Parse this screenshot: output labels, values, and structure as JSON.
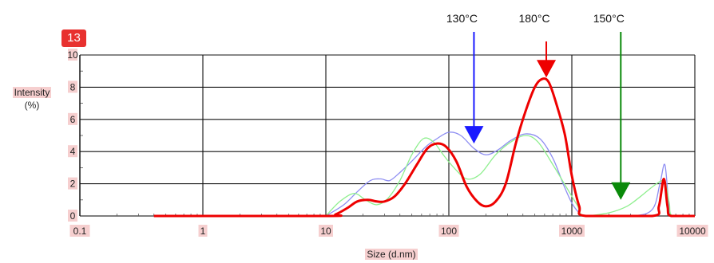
{
  "badge": "13",
  "chart_data": {
    "type": "line",
    "xlabel": "Size (d.nm)",
    "ylabel_line1": "Intensity",
    "ylabel_line2": "(%)",
    "xscale": "log",
    "xlim": [
      0.1,
      10000
    ],
    "ylim": [
      0,
      10
    ],
    "xticks": [
      {
        "value": 0.1,
        "label": "0.1"
      },
      {
        "value": 1,
        "label": "1"
      },
      {
        "value": 10,
        "label": "10"
      },
      {
        "value": 100,
        "label": "100"
      },
      {
        "value": 1000,
        "label": "1000"
      },
      {
        "value": 10000,
        "label": "10000"
      }
    ],
    "yticks": [
      0,
      2,
      4,
      6,
      8,
      10
    ],
    "grid": true,
    "series": [
      {
        "name": "130°C",
        "color": "#8e8ef2",
        "points": [
          [
            10,
            0
          ],
          [
            14,
            0.7
          ],
          [
            18,
            1.5
          ],
          [
            23,
            2.2
          ],
          [
            28,
            2.3
          ],
          [
            33,
            2.2
          ],
          [
            40,
            2.7
          ],
          [
            50,
            3.4
          ],
          [
            65,
            4.3
          ],
          [
            80,
            4.8
          ],
          [
            100,
            5.2
          ],
          [
            125,
            5.0
          ],
          [
            160,
            4.2
          ],
          [
            200,
            3.8
          ],
          [
            250,
            4.1
          ],
          [
            320,
            4.7
          ],
          [
            420,
            5.1
          ],
          [
            550,
            4.8
          ],
          [
            700,
            3.6
          ],
          [
            850,
            2.0
          ],
          [
            1000,
            0.8
          ],
          [
            1150,
            0.2
          ],
          [
            1300,
            0
          ],
          [
            3000,
            0
          ],
          [
            4500,
            0.4
          ],
          [
            5200,
            2.0
          ],
          [
            5700,
            3.2
          ],
          [
            6100,
            1.0
          ],
          [
            6500,
            0
          ],
          [
            10000,
            0
          ]
        ]
      },
      {
        "name": "150°C",
        "color": "#8fef8f",
        "points": [
          [
            10,
            0
          ],
          [
            13,
            0.9
          ],
          [
            17,
            1.4
          ],
          [
            21,
            1.0
          ],
          [
            26,
            0.7
          ],
          [
            32,
            1.1
          ],
          [
            40,
            2.2
          ],
          [
            50,
            3.8
          ],
          [
            62,
            4.8
          ],
          [
            75,
            4.6
          ],
          [
            90,
            3.8
          ],
          [
            110,
            3.0
          ],
          [
            140,
            2.3
          ],
          [
            180,
            2.6
          ],
          [
            240,
            3.8
          ],
          [
            320,
            4.6
          ],
          [
            420,
            5.0
          ],
          [
            530,
            4.6
          ],
          [
            700,
            3.2
          ],
          [
            900,
            1.8
          ],
          [
            1100,
            0.7
          ],
          [
            1250,
            0
          ],
          [
            2000,
            0.2
          ],
          [
            2800,
            0.6
          ],
          [
            3600,
            1.2
          ],
          [
            4500,
            1.8
          ],
          [
            5400,
            2.2
          ],
          [
            5800,
            2.0
          ],
          [
            6200,
            0.8
          ],
          [
            6600,
            0
          ],
          [
            10000,
            0
          ]
        ]
      },
      {
        "name": "180°C",
        "color": "#ee0000",
        "points": [
          [
            0.4,
            0
          ],
          [
            10,
            0
          ],
          [
            12,
            0.1
          ],
          [
            15,
            0.5
          ],
          [
            18,
            0.9
          ],
          [
            22,
            1.0
          ],
          [
            26,
            0.9
          ],
          [
            30,
            0.9
          ],
          [
            36,
            1.2
          ],
          [
            44,
            2.0
          ],
          [
            55,
            3.2
          ],
          [
            67,
            4.2
          ],
          [
            80,
            4.5
          ],
          [
            95,
            4.3
          ],
          [
            115,
            3.4
          ],
          [
            140,
            1.8
          ],
          [
            170,
            0.9
          ],
          [
            200,
            0.6
          ],
          [
            240,
            0.9
          ],
          [
            290,
            2.0
          ],
          [
            350,
            4.5
          ],
          [
            420,
            6.5
          ],
          [
            500,
            8.0
          ],
          [
            570,
            8.5
          ],
          [
            650,
            8.3
          ],
          [
            760,
            6.8
          ],
          [
            880,
            5.0
          ],
          [
            1000,
            2.5
          ],
          [
            1150,
            0.6
          ],
          [
            1300,
            0
          ],
          [
            4500,
            0
          ],
          [
            5100,
            0.6
          ],
          [
            5600,
            2.3
          ],
          [
            6000,
            0.6
          ],
          [
            6400,
            0
          ],
          [
            10000,
            0
          ]
        ]
      }
    ],
    "annotations": [
      {
        "label": "130°C",
        "x": 160,
        "y_tip": 4.5,
        "color": "#1a1aff"
      },
      {
        "label": "180°C",
        "x": 620,
        "y_tip": 8.6,
        "color": "#ee0000"
      },
      {
        "label": "150°C",
        "x": 2500,
        "y_tip": 1.0,
        "color": "#0a8a0a"
      }
    ]
  }
}
